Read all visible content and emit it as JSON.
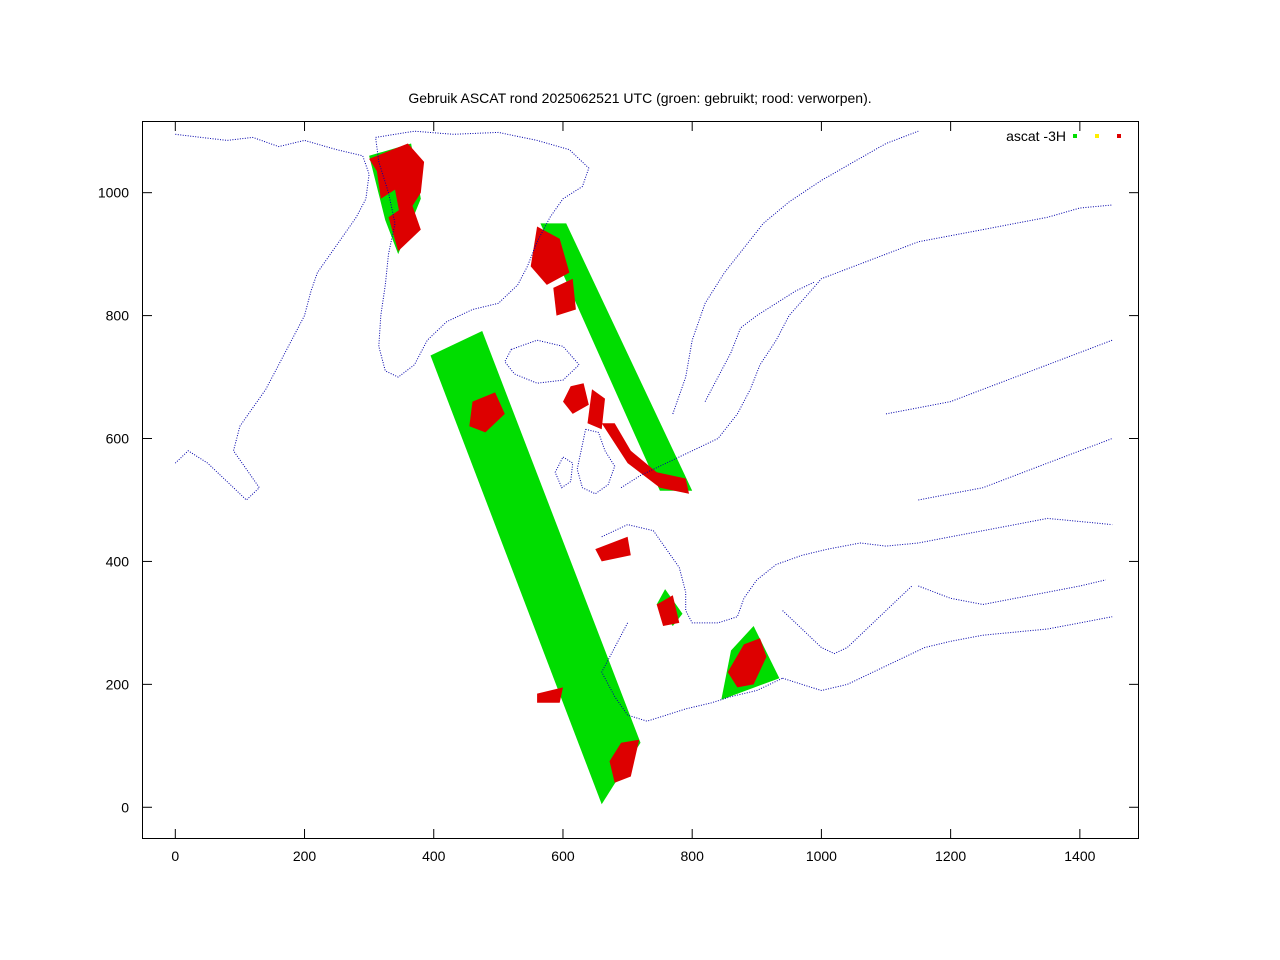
{
  "chart_data": {
    "type": "scatter",
    "title": "Gebruik ASCAT rond 2025062521 UTC (groen: gebruikt; rood: verworpen).",
    "xlabel": "",
    "ylabel": "",
    "xlim": [
      -50,
      1490
    ],
    "ylim": [
      -50,
      1115
    ],
    "x_ticks": [
      0,
      200,
      400,
      600,
      800,
      1000,
      1200,
      1400
    ],
    "y_ticks": [
      0,
      200,
      400,
      600,
      800,
      1000
    ],
    "grid": false,
    "legend": {
      "label": "ascat -3H",
      "placement": "top-right",
      "markers": [
        "#00dd00",
        "#ffee00",
        "#dd0000"
      ]
    },
    "colors": {
      "coastline": "#0000aa",
      "used": "#00dd00",
      "rejected": "#dd0000",
      "frame": "#000000"
    },
    "swaths": [
      {
        "name": "west-swath",
        "status": "used",
        "polygon": [
          [
            395,
            735
          ],
          [
            475,
            775
          ],
          [
            720,
            105
          ],
          [
            660,
            5
          ]
        ]
      },
      {
        "name": "central-swath",
        "status": "used",
        "polygon": [
          [
            565,
            950
          ],
          [
            605,
            950
          ],
          [
            800,
            515
          ],
          [
            750,
            515
          ]
        ]
      },
      {
        "name": "greenland-east-swath",
        "status": "used",
        "polygon": [
          [
            300,
            1060
          ],
          [
            365,
            1080
          ],
          [
            380,
            990
          ],
          [
            345,
            900
          ],
          [
            325,
            955
          ]
        ]
      },
      {
        "name": "mediterranean-swath",
        "status": "used",
        "polygon": [
          [
            845,
            175
          ],
          [
            935,
            210
          ],
          [
            895,
            295
          ],
          [
            860,
            255
          ]
        ]
      },
      {
        "name": "biscay-patch",
        "status": "used",
        "polygon": [
          [
            758,
            355
          ],
          [
            785,
            315
          ],
          [
            770,
            295
          ],
          [
            745,
            330
          ]
        ]
      }
    ],
    "rejected_regions": [
      {
        "name": "greenland-coast",
        "polygon": [
          [
            300,
            1055
          ],
          [
            360,
            1080
          ],
          [
            385,
            1050
          ],
          [
            380,
            1000
          ],
          [
            350,
            950
          ],
          [
            340,
            1005
          ],
          [
            318,
            990
          ],
          [
            312,
            1035
          ]
        ]
      },
      {
        "name": "greenland-south",
        "polygon": [
          [
            330,
            960
          ],
          [
            365,
            985
          ],
          [
            380,
            940
          ],
          [
            345,
            905
          ]
        ]
      },
      {
        "name": "iceland-north",
        "polygon": [
          [
            560,
            945
          ],
          [
            595,
            925
          ],
          [
            610,
            870
          ],
          [
            575,
            850
          ],
          [
            550,
            880
          ]
        ]
      },
      {
        "name": "iceland-east",
        "polygon": [
          [
            585,
            845
          ],
          [
            615,
            860
          ],
          [
            620,
            810
          ],
          [
            590,
            800
          ]
        ]
      },
      {
        "name": "faroe",
        "polygon": [
          [
            612,
            685
          ],
          [
            632,
            690
          ],
          [
            640,
            655
          ],
          [
            615,
            640
          ],
          [
            600,
            660
          ]
        ]
      },
      {
        "name": "shetland",
        "polygon": [
          [
            645,
            680
          ],
          [
            665,
            665
          ],
          [
            660,
            615
          ],
          [
            638,
            625
          ]
        ]
      },
      {
        "name": "uk-east-coast",
        "polygon": [
          [
            660,
            625
          ],
          [
            700,
            560
          ],
          [
            750,
            520
          ],
          [
            795,
            510
          ],
          [
            790,
            535
          ],
          [
            745,
            545
          ],
          [
            705,
            580
          ],
          [
            680,
            625
          ]
        ]
      },
      {
        "name": "rockall-patch",
        "polygon": [
          [
            460,
            660
          ],
          [
            495,
            675
          ],
          [
            510,
            640
          ],
          [
            480,
            610
          ],
          [
            455,
            620
          ]
        ]
      },
      {
        "name": "channel",
        "polygon": [
          [
            650,
            420
          ],
          [
            700,
            440
          ],
          [
            705,
            410
          ],
          [
            660,
            400
          ]
        ]
      },
      {
        "name": "biscay-coast",
        "polygon": [
          [
            745,
            330
          ],
          [
            770,
            345
          ],
          [
            780,
            300
          ],
          [
            755,
            295
          ]
        ]
      },
      {
        "name": "portugal-coast",
        "polygon": [
          [
            690,
            105
          ],
          [
            718,
            110
          ],
          [
            705,
            50
          ],
          [
            680,
            40
          ],
          [
            672,
            75
          ]
        ]
      },
      {
        "name": "atlantic-patch",
        "polygon": [
          [
            560,
            185
          ],
          [
            600,
            195
          ],
          [
            595,
            170
          ],
          [
            560,
            170
          ]
        ]
      },
      {
        "name": "mediterranean-ring",
        "polygon": [
          [
            855,
            220
          ],
          [
            880,
            265
          ],
          [
            905,
            275
          ],
          [
            915,
            245
          ],
          [
            895,
            200
          ],
          [
            870,
            195
          ]
        ]
      }
    ],
    "coastlines": [
      [
        [
          0,
          1095
        ],
        [
          40,
          1090
        ],
        [
          80,
          1085
        ],
        [
          120,
          1090
        ],
        [
          160,
          1075
        ],
        [
          200,
          1085
        ],
        [
          250,
          1070
        ],
        [
          290,
          1060
        ],
        [
          300,
          1030
        ],
        [
          295,
          990
        ],
        [
          280,
          960
        ],
        [
          260,
          930
        ],
        [
          240,
          900
        ],
        [
          220,
          870
        ],
        [
          210,
          840
        ],
        [
          200,
          800
        ],
        [
          180,
          760
        ],
        [
          160,
          720
        ],
        [
          140,
          680
        ],
        [
          120,
          650
        ],
        [
          100,
          620
        ],
        [
          90,
          580
        ],
        [
          110,
          550
        ],
        [
          130,
          520
        ],
        [
          110,
          500
        ],
        [
          80,
          530
        ],
        [
          50,
          560
        ],
        [
          20,
          580
        ],
        [
          0,
          560
        ]
      ],
      [
        [
          310,
          1090
        ],
        [
          370,
          1100
        ],
        [
          430,
          1095
        ],
        [
          500,
          1098
        ],
        [
          560,
          1085
        ],
        [
          610,
          1070
        ],
        [
          640,
          1040
        ],
        [
          630,
          1010
        ],
        [
          600,
          990
        ],
        [
          580,
          960
        ],
        [
          560,
          920
        ],
        [
          545,
          880
        ],
        [
          530,
          850
        ],
        [
          500,
          820
        ],
        [
          460,
          810
        ],
        [
          420,
          790
        ],
        [
          390,
          760
        ],
        [
          370,
          720
        ],
        [
          345,
          700
        ],
        [
          325,
          710
        ],
        [
          315,
          750
        ],
        [
          318,
          800
        ],
        [
          325,
          850
        ],
        [
          330,
          900
        ],
        [
          340,
          950
        ],
        [
          330,
          1000
        ],
        [
          315,
          1050
        ],
        [
          310,
          1090
        ]
      ],
      [
        [
          520,
          745
        ],
        [
          560,
          760
        ],
        [
          600,
          750
        ],
        [
          625,
          720
        ],
        [
          600,
          695
        ],
        [
          560,
          690
        ],
        [
          525,
          705
        ],
        [
          510,
          725
        ],
        [
          520,
          745
        ]
      ],
      [
        [
          635,
          615
        ],
        [
          655,
          610
        ],
        [
          665,
          580
        ],
        [
          680,
          555
        ],
        [
          670,
          525
        ],
        [
          650,
          510
        ],
        [
          630,
          520
        ],
        [
          622,
          550
        ],
        [
          628,
          580
        ],
        [
          635,
          615
        ]
      ],
      [
        [
          600,
          570
        ],
        [
          615,
          560
        ],
        [
          612,
          530
        ],
        [
          598,
          520
        ],
        [
          588,
          545
        ],
        [
          600,
          570
        ]
      ],
      [
        [
          690,
          520
        ],
        [
          720,
          540
        ],
        [
          760,
          560
        ],
        [
          800,
          580
        ],
        [
          840,
          600
        ],
        [
          870,
          640
        ],
        [
          890,
          680
        ],
        [
          905,
          720
        ],
        [
          930,
          760
        ],
        [
          950,
          800
        ],
        [
          975,
          830
        ],
        [
          1000,
          860
        ],
        [
          1050,
          880
        ],
        [
          1100,
          900
        ],
        [
          1150,
          920
        ],
        [
          1200,
          930
        ],
        [
          1250,
          940
        ],
        [
          1300,
          950
        ],
        [
          1350,
          960
        ],
        [
          1400,
          975
        ],
        [
          1450,
          980
        ]
      ],
      [
        [
          770,
          640
        ],
        [
          790,
          700
        ],
        [
          800,
          760
        ],
        [
          820,
          820
        ],
        [
          850,
          870
        ],
        [
          880,
          910
        ],
        [
          910,
          950
        ],
        [
          950,
          985
        ],
        [
          1000,
          1020
        ],
        [
          1050,
          1050
        ],
        [
          1100,
          1080
        ],
        [
          1150,
          1100
        ]
      ],
      [
        [
          820,
          660
        ],
        [
          840,
          700
        ],
        [
          860,
          740
        ],
        [
          875,
          780
        ],
        [
          900,
          800
        ],
        [
          930,
          820
        ],
        [
          960,
          840
        ],
        [
          990,
          855
        ]
      ],
      [
        [
          660,
          440
        ],
        [
          700,
          460
        ],
        [
          740,
          450
        ],
        [
          760,
          420
        ],
        [
          780,
          390
        ],
        [
          790,
          350
        ],
        [
          790,
          320
        ],
        [
          800,
          300
        ],
        [
          840,
          300
        ],
        [
          870,
          310
        ],
        [
          880,
          340
        ],
        [
          900,
          370
        ],
        [
          930,
          395
        ],
        [
          970,
          410
        ],
        [
          1010,
          420
        ],
        [
          1060,
          430
        ],
        [
          1100,
          425
        ],
        [
          1150,
          430
        ],
        [
          1200,
          440
        ],
        [
          1250,
          450
        ],
        [
          1300,
          460
        ],
        [
          1350,
          470
        ],
        [
          1400,
          465
        ],
        [
          1450,
          460
        ]
      ],
      [
        [
          700,
          300
        ],
        [
          680,
          260
        ],
        [
          660,
          220
        ],
        [
          680,
          180
        ],
        [
          700,
          150
        ],
        [
          730,
          140
        ],
        [
          760,
          150
        ],
        [
          790,
          160
        ],
        [
          830,
          170
        ],
        [
          860,
          180
        ],
        [
          900,
          190
        ],
        [
          940,
          210
        ]
      ],
      [
        [
          940,
          210
        ],
        [
          970,
          200
        ],
        [
          1000,
          190
        ],
        [
          1040,
          200
        ],
        [
          1080,
          220
        ],
        [
          1120,
          240
        ],
        [
          1160,
          260
        ],
        [
          1200,
          270
        ],
        [
          1250,
          280
        ],
        [
          1300,
          285
        ],
        [
          1350,
          290
        ],
        [
          1400,
          300
        ],
        [
          1450,
          310
        ]
      ],
      [
        [
          940,
          320
        ],
        [
          960,
          300
        ],
        [
          980,
          280
        ],
        [
          1000,
          260
        ],
        [
          1020,
          250
        ],
        [
          1040,
          260
        ],
        [
          1060,
          280
        ],
        [
          1080,
          300
        ],
        [
          1100,
          320
        ],
        [
          1120,
          340
        ],
        [
          1140,
          360
        ]
      ],
      [
        [
          1150,
          360
        ],
        [
          1200,
          340
        ],
        [
          1250,
          330
        ],
        [
          1300,
          340
        ],
        [
          1350,
          350
        ],
        [
          1400,
          360
        ],
        [
          1440,
          370
        ]
      ],
      [
        [
          1100,
          640
        ],
        [
          1150,
          650
        ],
        [
          1200,
          660
        ],
        [
          1250,
          680
        ],
        [
          1300,
          700
        ],
        [
          1350,
          720
        ],
        [
          1400,
          740
        ],
        [
          1450,
          760
        ]
      ],
      [
        [
          1150,
          500
        ],
        [
          1200,
          510
        ],
        [
          1250,
          520
        ],
        [
          1300,
          540
        ],
        [
          1350,
          560
        ],
        [
          1400,
          580
        ],
        [
          1450,
          600
        ]
      ]
    ]
  }
}
